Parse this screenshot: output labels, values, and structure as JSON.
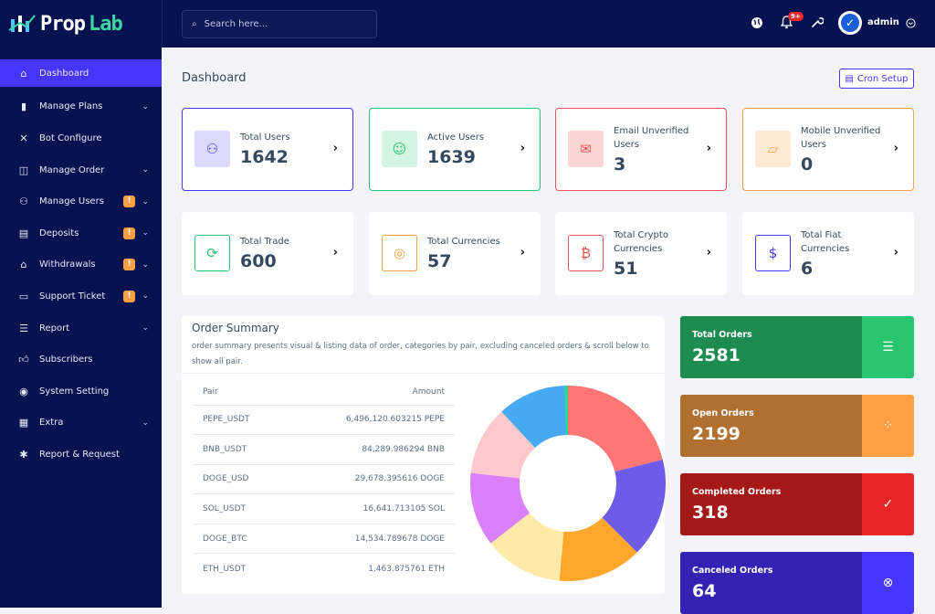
{
  "brand": {
    "name_part1": "Prop",
    "name_part2": "Lab"
  },
  "search": {
    "placeholder": "Search here..."
  },
  "header": {
    "notification_badge": "9+",
    "user": "admin"
  },
  "sidebar": {
    "items": [
      {
        "label": "Dashboard",
        "icon": "home-icon",
        "active": true
      },
      {
        "label": "Manage Plans",
        "icon": "bar-chart-icon",
        "chevron": true
      },
      {
        "label": "Bot Configure",
        "icon": "tools-icon"
      },
      {
        "label": "Manage Order",
        "icon": "coins-icon",
        "chevron": true
      },
      {
        "label": "Manage Users",
        "icon": "users-icon",
        "chevron": true,
        "badge": "!"
      },
      {
        "label": "Deposits",
        "icon": "invoice-icon",
        "chevron": true,
        "badge": "!"
      },
      {
        "label": "Withdrawals",
        "icon": "bank-icon",
        "chevron": true,
        "badge": "!"
      },
      {
        "label": "Support Ticket",
        "icon": "ticket-icon",
        "chevron": true,
        "badge": "!"
      },
      {
        "label": "Report",
        "icon": "list-icon",
        "chevron": true
      },
      {
        "label": "Subscribers",
        "icon": "thumbs-up-icon"
      },
      {
        "label": "System Setting",
        "icon": "life-ring-icon"
      },
      {
        "label": "Extra",
        "icon": "server-icon",
        "chevron": true
      },
      {
        "label": "Report & Request",
        "icon": "bug-icon"
      }
    ]
  },
  "page": {
    "title": "Dashboard",
    "cron_label": "Cron Setup"
  },
  "stats": [
    {
      "label": "Total Users",
      "value": "1642",
      "icon": "users-icon",
      "color": "#4634ff",
      "bg": "#dcd8ff",
      "bordered": true
    },
    {
      "label": "Active Users",
      "value": "1639",
      "icon": "user-check-icon",
      "color": "#28c76f",
      "bg": "#d4f4e2",
      "bordered": true
    },
    {
      "label": "Email Unverified Users",
      "value": "3",
      "icon": "envelope-icon",
      "color": "#ea5455",
      "bg": "#fbd4d4",
      "bordered": true
    },
    {
      "label": "Mobile Unverified Users",
      "value": "0",
      "icon": "comment-slash-icon",
      "color": "#ff9f43",
      "bg": "#ffe9d5",
      "bordered": true
    },
    {
      "label": "Total Trade",
      "value": "600",
      "icon": "sync-icon",
      "color": "#28c76f",
      "bg": "#fff"
    },
    {
      "label": "Total Currencies",
      "value": "57",
      "icon": "coins-icon",
      "color": "#ff9f43",
      "bg": "#fff"
    },
    {
      "label": "Total Crypto Currencies",
      "value": "51",
      "icon": "bitcoin-icon",
      "color": "#ea5455",
      "bg": "#fff"
    },
    {
      "label": "Total Fiat Currencies",
      "value": "6",
      "icon": "dollar-icon",
      "color": "#4634ff",
      "bg": "#fff"
    }
  ],
  "order_summary": {
    "title": "Order Summary",
    "description": "order summary presents visual & listing data of order, categories by pair, excluding canceled orders & scroll below to show all pair.",
    "columns": [
      "Pair",
      "Amount"
    ],
    "rows": [
      [
        "PEPE_USDT",
        "6,496,120.603215 PEPE"
      ],
      [
        "BNB_USDT",
        "84,289.986294 BNB"
      ],
      [
        "DOGE_USD",
        "29,678.395616 DOGE"
      ],
      [
        "SOL_USDT",
        "16,641.713105 SOL"
      ],
      [
        "DOGE_BTC",
        "14,534.789678 DOGE"
      ],
      [
        "ETH_USDT",
        "1,463.875761 ETH"
      ]
    ],
    "chart": {
      "type": "doughnut",
      "slices_percent": [
        21.1,
        16.4,
        13.9,
        13.1,
        12.2,
        11.4,
        11.4,
        0.5
      ],
      "colors": [
        "#ff7675",
        "#6c5ce7",
        "#ffa62b",
        "#ffeaa7",
        "#d980fa",
        "#fcc8cc",
        "#45aaf2",
        "#26de81"
      ]
    }
  },
  "orders": [
    {
      "label": "Total Orders",
      "value": "2581",
      "icon": "list-check-icon",
      "dark": "#1e8c51",
      "light": "#28c76f",
      "glyph": "☰"
    },
    {
      "label": "Open Orders",
      "value": "2199",
      "icon": "spinner-icon",
      "dark": "#b17030",
      "light": "#ff9f43",
      "glyph": "⁘"
    },
    {
      "label": "Completed Orders",
      "value": "318",
      "icon": "check-circle-icon",
      "dark": "#a41818",
      "light": "#ea2525",
      "glyph": "✓"
    },
    {
      "label": "Canceled Orders",
      "value": "64",
      "icon": "times-circle-icon",
      "dark": "#3223b5",
      "light": "#4634ff",
      "glyph": "⊗"
    }
  ]
}
